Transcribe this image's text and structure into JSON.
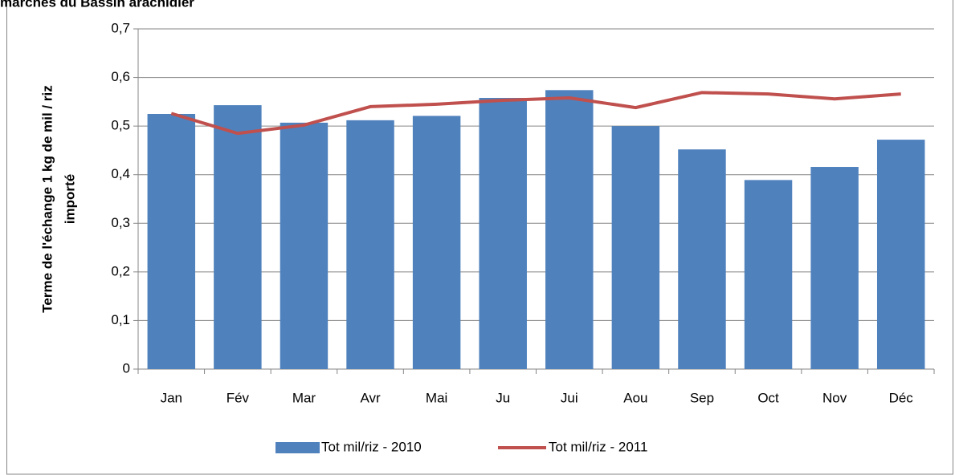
{
  "chart_data": {
    "type": "bar_line",
    "title": "marchés du Bassin arachidier",
    "y_label": [
      "Terme de l'échange 1 kg de mil / riz",
      "importé"
    ],
    "categories": [
      "Jan",
      "Fév",
      "Mar",
      "Avr",
      "Mai",
      "Ju",
      "Jui",
      "Aou",
      "Sep",
      "Oct",
      "Nov",
      "Déc"
    ],
    "series": [
      {
        "name": "Tot mil/riz - 2010",
        "type": "bar",
        "color": "#4f81bd",
        "values": [
          0.525,
          0.543,
          0.507,
          0.512,
          0.521,
          0.558,
          0.574,
          0.5,
          0.452,
          0.389,
          0.416,
          0.472
        ]
      },
      {
        "name": "Tot mil/riz - 2011",
        "type": "line",
        "color": "#c0504d",
        "values": [
          0.526,
          0.485,
          0.502,
          0.54,
          0.545,
          0.553,
          0.558,
          0.538,
          0.569,
          0.566,
          0.556,
          0.566
        ]
      }
    ],
    "ylim": [
      0,
      0.7
    ],
    "yticks": [
      0,
      {
        "value": 0.1,
        "label": "0,1"
      },
      {
        "value": 0.2,
        "label": "0,2"
      },
      {
        "value": 0.3,
        "label": "0,3"
      },
      {
        "value": 0.4,
        "label": "0,4"
      },
      {
        "value": 0.5,
        "label": "0,5"
      },
      {
        "value": 0.6,
        "label": "0,6"
      },
      {
        "value": 0.7,
        "label": "0,7"
      }
    ],
    "grid": true,
    "legend": "bottom"
  }
}
